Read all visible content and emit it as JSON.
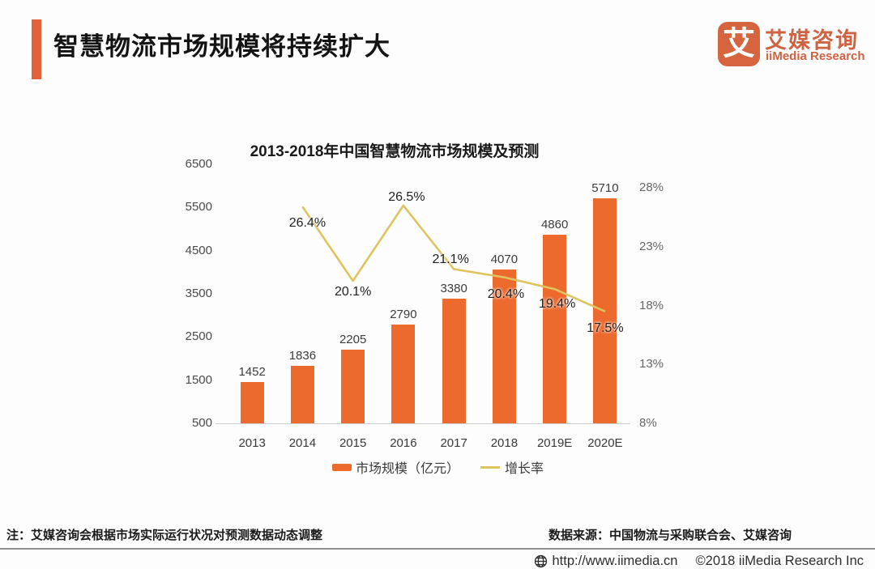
{
  "header": {
    "title": "智慧物流市场规模将持续扩大",
    "logo": {
      "mark": "艾",
      "name_cn": "艾媒咨询",
      "name_en": "iiMedia Research"
    }
  },
  "chart_data": {
    "type": "bar",
    "title": "2013-2018年中国智慧物流市场规模及预测",
    "categories": [
      "2013",
      "2014",
      "2015",
      "2016",
      "2017",
      "2018",
      "2019E",
      "2020E"
    ],
    "series": [
      {
        "name": "市场规模（亿元）",
        "type": "bar",
        "axis": "left",
        "color": "#ED6A2E",
        "values": [
          1452,
          1836,
          2205,
          2790,
          3380,
          4070,
          4860,
          5710
        ]
      },
      {
        "name": "增长率",
        "type": "line",
        "axis": "right",
        "color": "#DFC35F",
        "values": [
          null,
          26.4,
          20.1,
          26.5,
          21.1,
          20.4,
          19.4,
          17.5
        ],
        "labels": [
          "",
          "26.4%",
          "20.1%",
          "26.5%",
          "21.1%",
          "20.4%",
          "19.4%",
          "17.5%"
        ]
      }
    ],
    "left_axis": {
      "min": 500,
      "max": 6500,
      "ticks": [
        "6500",
        "5500",
        "4500",
        "3500",
        "2500",
        "1500",
        "500"
      ],
      "tick_values": [
        6500,
        5500,
        4500,
        3500,
        2500,
        1500,
        500
      ]
    },
    "right_axis": {
      "min": 8,
      "max": 30,
      "ticks": [
        "28%",
        "23%",
        "18%",
        "13%",
        "8%"
      ],
      "tick_values": [
        28,
        23,
        18,
        13,
        8
      ]
    },
    "legend_position": "bottom",
    "grid": false
  },
  "notes": {
    "left": "注：艾媒咨询会根据市场实际运行状况对预测数据动态调整",
    "right": "数据来源：中国物流与采购联合会、艾媒咨询"
  },
  "footer": {
    "url": "http://www.iimedia.cn",
    "copyright": "©2018  iiMedia Research Inc"
  },
  "colors": {
    "bar": "#ED6A2E",
    "line": "#DFC35F",
    "accent": "#E2633A",
    "logo": "#D5643F"
  }
}
